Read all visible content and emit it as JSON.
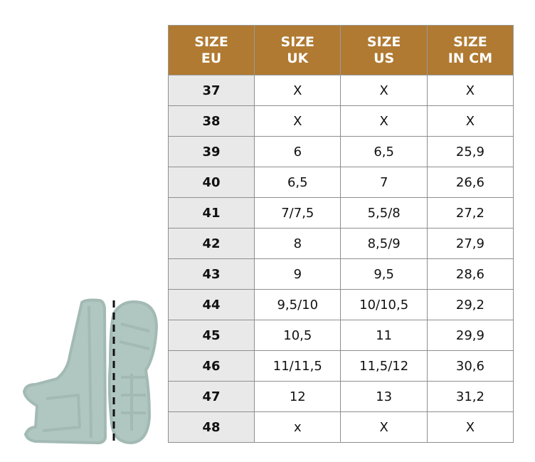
{
  "colors": {
    "header": "#b07a32",
    "eu_column": "#e9e9e9",
    "illustration": "#b0c6c0"
  },
  "illustration": {
    "icons": [
      "boot-side-icon",
      "boot-sole-icon",
      "dashed-measure-line"
    ]
  },
  "headers": [
    [
      "SIZE",
      "EU"
    ],
    [
      "SIZE",
      "UK"
    ],
    [
      "SIZE",
      "US"
    ],
    [
      "SIZE",
      "IN CM"
    ]
  ],
  "rows": [
    [
      "37",
      "X",
      "X",
      "X"
    ],
    [
      "38",
      "X",
      "X",
      "X"
    ],
    [
      "39",
      "6",
      "6,5",
      "25,9"
    ],
    [
      "40",
      "6,5",
      "7",
      "26,6"
    ],
    [
      "41",
      "7/7,5",
      "5,5/8",
      "27,2"
    ],
    [
      "42",
      "8",
      "8,5/9",
      "27,9"
    ],
    [
      "43",
      "9",
      "9,5",
      "28,6"
    ],
    [
      "44",
      "9,5/10",
      "10/10,5",
      "29,2"
    ],
    [
      "45",
      "10,5",
      "11",
      "29,9"
    ],
    [
      "46",
      "11/11,5",
      "11,5/12",
      "30,6"
    ],
    [
      "47",
      "12",
      "13",
      "31,2"
    ],
    [
      "48",
      "x",
      "X",
      "X"
    ]
  ]
}
